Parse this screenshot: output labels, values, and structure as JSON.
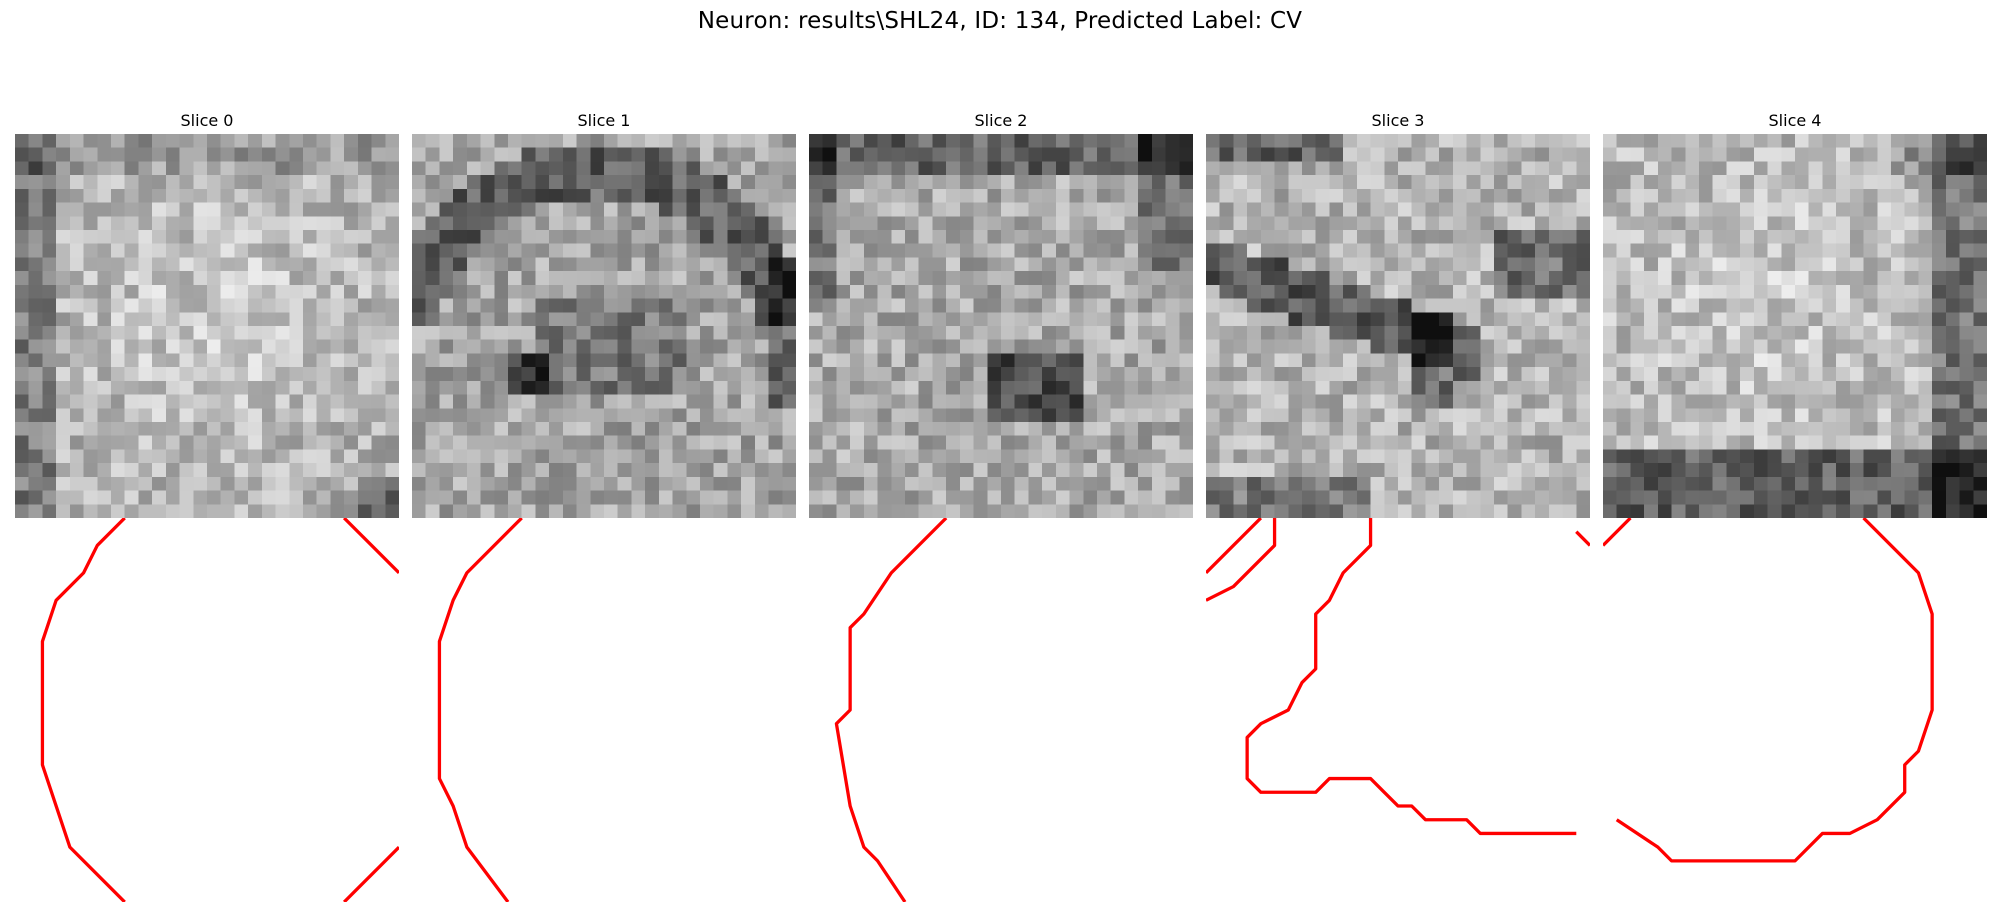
{
  "figure": {
    "title": "Neuron: results\\SHL24, ID: 134, Predicted Label: CV"
  },
  "panels": [
    {
      "title": "Slice 0"
    },
    {
      "title": "Slice 1"
    },
    {
      "title": "Slice 2"
    },
    {
      "title": "Slice 3"
    },
    {
      "title": "Slice 4"
    }
  ],
  "colors": {
    "contour": "#ff0000",
    "background": "#ffffff"
  }
}
